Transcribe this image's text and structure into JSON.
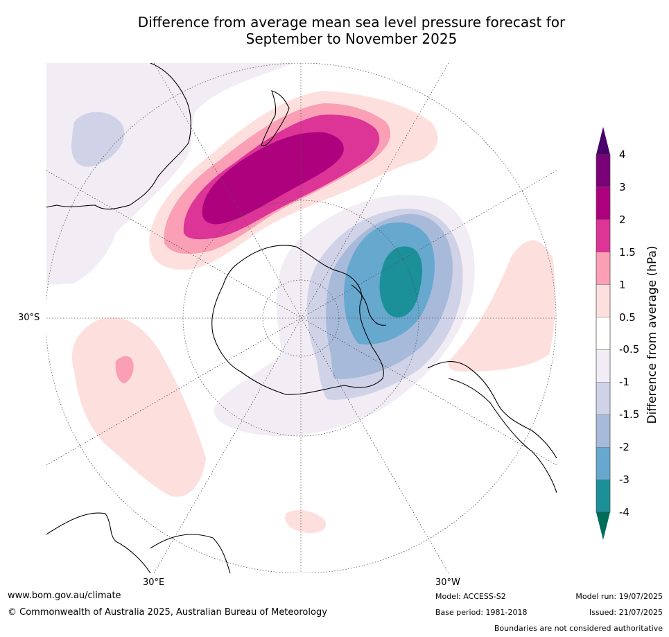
{
  "title": {
    "line1": "Difference from average mean sea level pressure forecast for",
    "line2": "September to November 2025"
  },
  "map": {
    "labels": {
      "lat_30s": "30°S",
      "lon_30e": "30°E",
      "lon_30w": "30°W"
    },
    "colors": {
      "land_outline": "#000000",
      "neg_05_1": "#f2ecf5",
      "neg_1_15": "#d0d3e7",
      "neg_15_2": "#a8bad9",
      "neg_2_3": "#67a8cf",
      "neg_3_4": "#1c9099",
      "pos_05_1": "#fde0dd",
      "pos_1_15": "#fa9fb5",
      "pos_15_2": "#dd3497",
      "pos_2_3": "#ae017e"
    }
  },
  "colorbar": {
    "title": "Difference from average (hPa)",
    "ticks": [
      "4",
      "3",
      "2",
      "1.5",
      "1",
      "0.5",
      "-0.5",
      "-1",
      "-1.5",
      "-2",
      "-3",
      "-4"
    ],
    "colors_top_to_bottom": [
      "#7a0177",
      "#ae017e",
      "#dd3497",
      "#fa9fb5",
      "#fde0dd",
      "#ffffff",
      "#f2ecf5",
      "#d0d3e7",
      "#a8bad9",
      "#67a8cf",
      "#1c9099"
    ],
    "over_color": "#49006a",
    "under_color": "#016c59"
  },
  "footer": {
    "website": "www.bom.gov.au/climate",
    "copyright": "© Commonwealth of Australia 2025, Australian Bureau of Meteorology",
    "model": "Model: ACCESS-S2",
    "base_period": "Base period: 1981-2018",
    "model_run": "Model run: 19/07/2025",
    "issued": "Issued: 21/07/2025",
    "disclaimer": "Boundaries are not considered authoritative"
  }
}
